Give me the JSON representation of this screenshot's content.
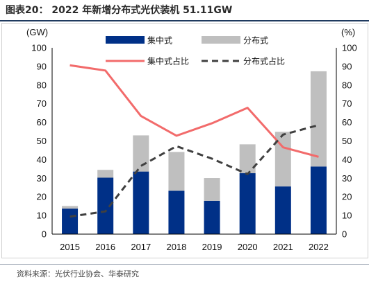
{
  "title": "图表20： 2022 年新增分布式光伏装机 51.11GW",
  "source": "资料来源：光伏行业协会、华泰研究",
  "chart_data": {
    "type": "bar",
    "stacked": true,
    "categories": [
      "2015",
      "2016",
      "2017",
      "2018",
      "2019",
      "2020",
      "2021",
      "2022"
    ],
    "series": [
      {
        "name": "集中式",
        "type": "bar",
        "axis": "left",
        "color": "#003087",
        "values": [
          13.7,
          30.3,
          33.6,
          23.3,
          17.9,
          32.7,
          25.6,
          36.3
        ]
      },
      {
        "name": "分布式",
        "type": "bar",
        "axis": "left",
        "color": "#bfbfbf",
        "values": [
          1.4,
          4.2,
          19.4,
          20.8,
          12.2,
          15.5,
          29.3,
          51.1
        ]
      },
      {
        "name": "集中式占比",
        "type": "line",
        "axis": "right",
        "color": "#f26b6b",
        "dash": false,
        "values": [
          90.6,
          87.8,
          63.4,
          52.8,
          59.5,
          67.8,
          46.6,
          41.5
        ]
      },
      {
        "name": "分布式占比",
        "type": "line",
        "axis": "right",
        "color": "#404040",
        "dash": true,
        "values": [
          9.4,
          12.2,
          36.6,
          47.2,
          40.5,
          32.2,
          53.4,
          58.5
        ]
      }
    ],
    "ylabel_left": "(GW)",
    "ylabel_right": "(%)",
    "ylim_left": [
      0,
      100
    ],
    "ylim_right": [
      0,
      100
    ],
    "yticks": [
      0,
      10,
      20,
      30,
      40,
      50,
      60,
      70,
      80,
      90,
      100
    ],
    "legend_position": "top",
    "grid": false
  }
}
